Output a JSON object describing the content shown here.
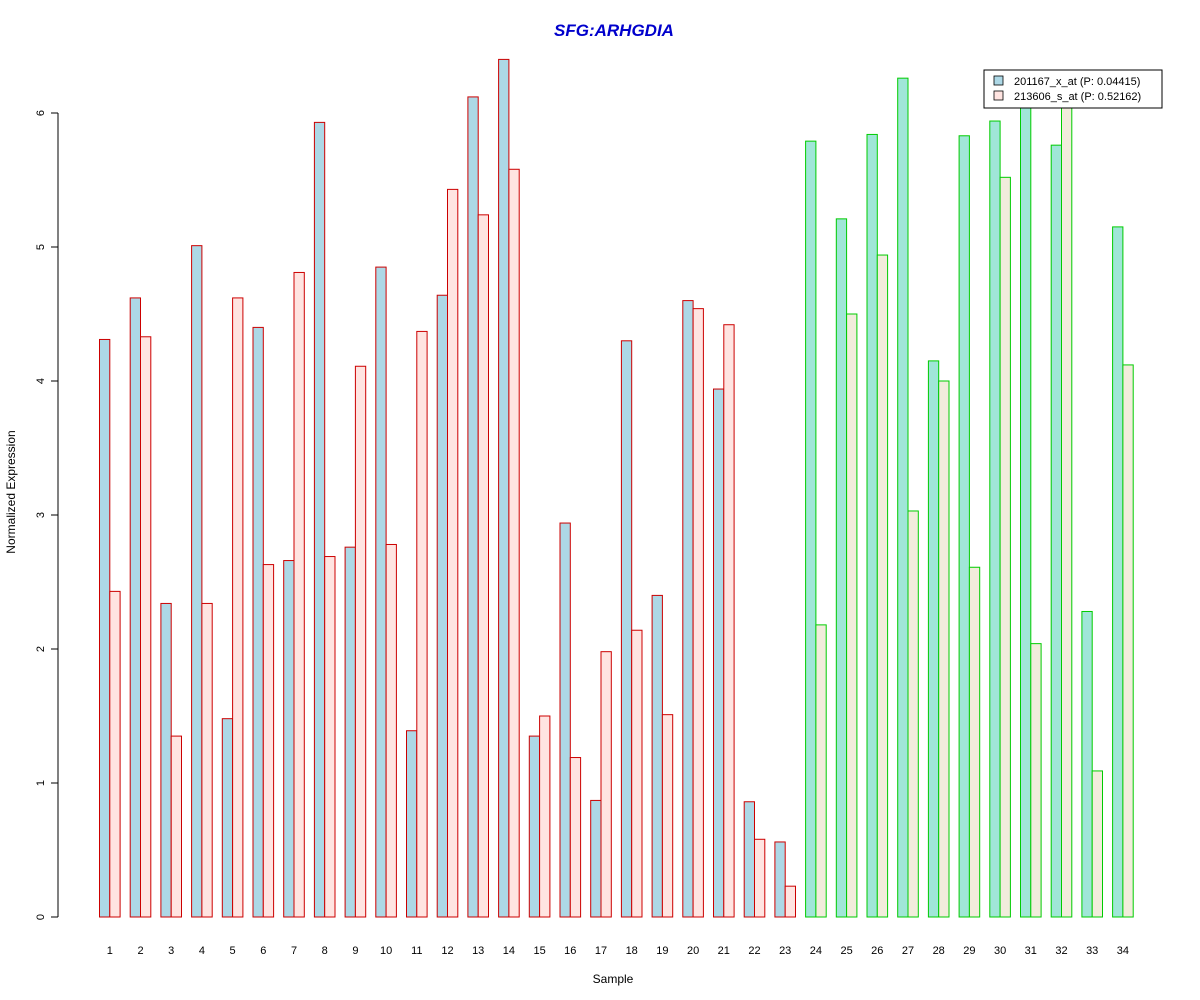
{
  "chart_data": {
    "type": "bar",
    "title": "SFG:ARHGDIA",
    "xlabel": "Sample",
    "ylabel": "Normalized Expression",
    "ylim": [
      0,
      6.4
    ],
    "yticks": [
      0,
      1,
      2,
      3,
      4,
      5,
      6
    ],
    "categories": [
      "1",
      "2",
      "3",
      "4",
      "5",
      "6",
      "7",
      "8",
      "9",
      "10",
      "11",
      "12",
      "13",
      "14",
      "15",
      "16",
      "17",
      "18",
      "19",
      "20",
      "21",
      "22",
      "23",
      "24",
      "25",
      "26",
      "27",
      "28",
      "29",
      "30",
      "31",
      "32",
      "33",
      "34"
    ],
    "series": [
      {
        "name": "201167_x_at (P: 0.04415)",
        "values": [
          4.31,
          4.62,
          2.34,
          5.01,
          1.48,
          4.4,
          2.66,
          5.93,
          2.76,
          4.85,
          1.39,
          4.64,
          6.12,
          6.4,
          1.35,
          2.94,
          0.87,
          4.3,
          2.4,
          4.6,
          3.94,
          0.86,
          0.56,
          5.79,
          5.21,
          5.84,
          6.26,
          4.15,
          5.83,
          5.94,
          6.1,
          5.76,
          2.28,
          5.15
        ]
      },
      {
        "name": "213606_s_at (P: 0.52162)",
        "values": [
          2.43,
          4.33,
          1.35,
          2.34,
          4.62,
          2.63,
          4.81,
          2.69,
          4.11,
          2.78,
          4.37,
          5.43,
          5.24,
          5.58,
          1.5,
          1.19,
          1.98,
          2.14,
          1.51,
          4.54,
          4.42,
          0.58,
          0.23,
          2.18,
          4.5,
          4.94,
          3.03,
          4.0,
          2.61,
          5.52,
          2.04,
          6.06,
          1.09,
          4.12
        ]
      }
    ],
    "group_split_after_sample": 23,
    "legend_position": "top-right",
    "grid": false,
    "colors": {
      "title": "#0000cc",
      "series1_fill": "#add8e6",
      "series2_fill": "#ffe4e1",
      "group1_border": "#cc0000",
      "group2_border": "#00cc00",
      "group2_series1_fill": "#a0e6d8",
      "group2_series2_fill": "#f2ecdc",
      "axis": "#000000"
    }
  }
}
